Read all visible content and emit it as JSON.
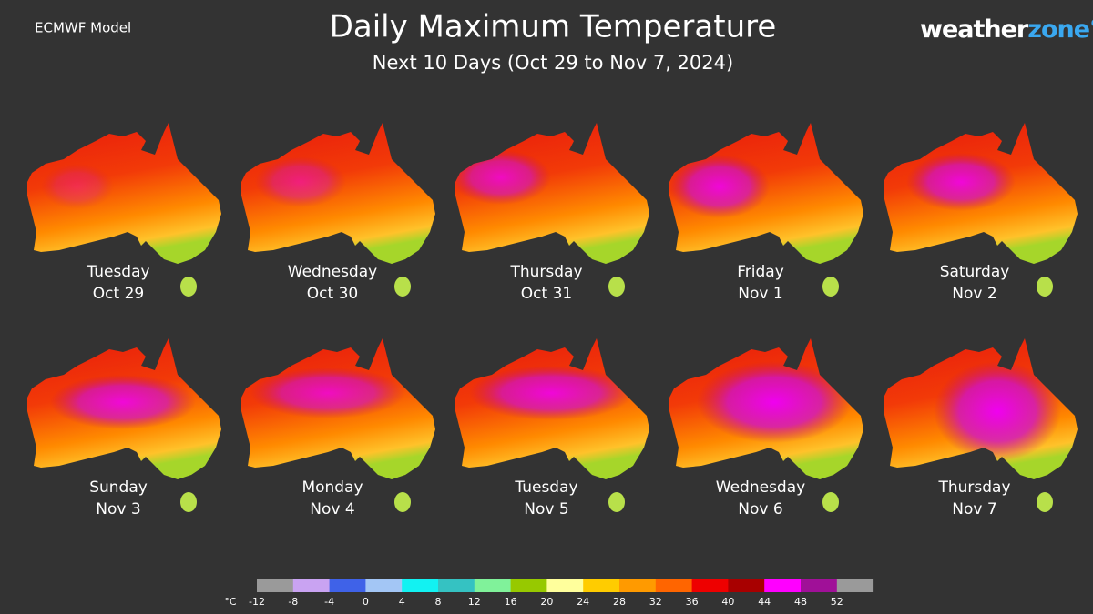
{
  "header": {
    "model": "ECMWF Model",
    "title": "Daily Maximum Temperature",
    "subtitle": "Next 10 Days (Oct 29 to Nov 7, 2024)",
    "logo": {
      "primary": "weather",
      "secondary": "zone°"
    }
  },
  "panels": [
    {
      "day": "Tuesday",
      "date": "Oct 29"
    },
    {
      "day": "Wednesday",
      "date": "Oct 30"
    },
    {
      "day": "Thursday",
      "date": "Oct 31"
    },
    {
      "day": "Friday",
      "date": "Nov 1"
    },
    {
      "day": "Saturday",
      "date": "Nov 2"
    },
    {
      "day": "Sunday",
      "date": "Nov 3"
    },
    {
      "day": "Monday",
      "date": "Nov 4"
    },
    {
      "day": "Tuesday",
      "date": "Nov 5"
    },
    {
      "day": "Wednesday",
      "date": "Nov 6"
    },
    {
      "day": "Thursday",
      "date": "Nov 7"
    }
  ],
  "colorbar": {
    "unit": "°C",
    "ticks": [
      -12,
      -8,
      -4,
      0,
      4,
      8,
      12,
      16,
      20,
      24,
      28,
      32,
      36,
      40,
      44,
      48,
      52
    ],
    "colors": [
      "#9a9a9a",
      "#c9a3f2",
      "#3f62e8",
      "#a3c6f5",
      "#12f2f2",
      "#35c2c2",
      "#80f29a",
      "#97c900",
      "#ffff9c",
      "#ffcc00",
      "#ff9a00",
      "#ff6500",
      "#ee0000",
      "#a80000",
      "#ff00ff",
      "#a01098",
      "#9a9a9a"
    ]
  }
}
